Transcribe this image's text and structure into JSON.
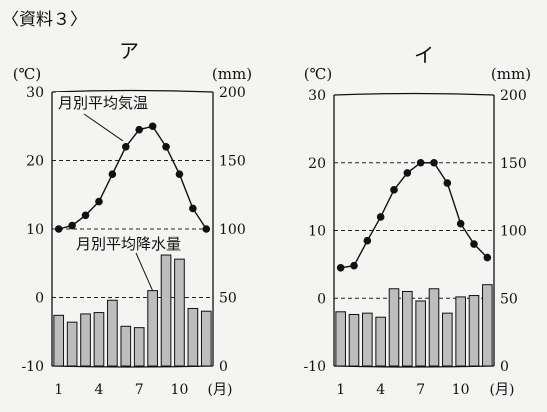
{
  "header": "〈資料３〉",
  "chart_data": [
    {
      "type": "bar+line",
      "title": "ア",
      "left_unit": "(℃)",
      "right_unit": "(mm)",
      "month_unit": "(月)",
      "x": [
        1,
        2,
        3,
        4,
        5,
        6,
        7,
        8,
        9,
        10,
        11,
        12
      ],
      "x_tick_labels": [
        "1",
        "4",
        "7",
        "10"
      ],
      "temp_ylim": [
        -10,
        30
      ],
      "temp_ticks": [
        "30",
        "20",
        "10",
        "0",
        "-10"
      ],
      "precip_ylim": [
        0,
        200
      ],
      "precip_ticks": [
        "200",
        "150",
        "100",
        "50",
        "0"
      ],
      "temperature": {
        "name": "月別平均気温",
        "values": [
          10,
          10.5,
          12,
          14,
          18,
          22,
          24.5,
          25,
          22,
          18,
          13,
          10
        ]
      },
      "precipitation": {
        "name": "月別平均降水量",
        "values": [
          37,
          32,
          38,
          39,
          48,
          29,
          28,
          55,
          81,
          78,
          42,
          40
        ]
      },
      "grid": "dashed at 0, 10, 20 ℃"
    },
    {
      "type": "bar+line",
      "title": "イ",
      "left_unit": "(℃)",
      "right_unit": "(mm)",
      "month_unit": "(月)",
      "x": [
        1,
        2,
        3,
        4,
        5,
        6,
        7,
        8,
        9,
        10,
        11,
        12
      ],
      "x_tick_labels": [
        "1",
        "4",
        "7",
        "10"
      ],
      "temp_ylim": [
        -10,
        30
      ],
      "temp_ticks": [
        "30",
        "20",
        "10",
        "0",
        "-10"
      ],
      "precip_ylim": [
        0,
        200
      ],
      "precip_ticks": [
        "200",
        "150",
        "100",
        "50",
        "0"
      ],
      "temperature": {
        "values": [
          4.5,
          4.8,
          8.5,
          12,
          16,
          18.5,
          20,
          20,
          17,
          11,
          8,
          6
        ]
      },
      "precipitation": {
        "values": [
          40,
          38,
          39,
          36,
          57,
          55,
          48,
          57,
          39,
          51,
          52,
          60
        ]
      },
      "grid": "dashed at 0, 10, 20 ℃"
    }
  ]
}
